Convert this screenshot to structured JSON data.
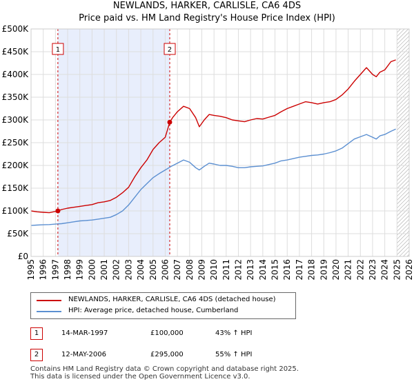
{
  "chart_data": {
    "type": "line",
    "title": "NEWLANDS, HARKER, CARLISLE, CA6 4DS",
    "subtitle": "Price paid vs. HM Land Registry's House Price Index (HPI)",
    "xlim": [
      1995,
      2026
    ],
    "ylim": [
      0,
      500000
    ],
    "x_ticks": [
      "1995",
      "1996",
      "1997",
      "1998",
      "1999",
      "2000",
      "2001",
      "2002",
      "2003",
      "2004",
      "2005",
      "2006",
      "2007",
      "2008",
      "2009",
      "2010",
      "2011",
      "2012",
      "2013",
      "2014",
      "2015",
      "2016",
      "2017",
      "2018",
      "2019",
      "2020",
      "2021",
      "2022",
      "2023",
      "2024",
      "2025",
      "2026"
    ],
    "y_ticks": [
      "£0",
      "£50K",
      "£100K",
      "£150K",
      "£200K",
      "£250K",
      "£300K",
      "£350K",
      "£400K",
      "£450K",
      "£500K"
    ],
    "grid": true,
    "shaded_region": [
      1997.2,
      2006.37
    ],
    "future_hatch_from": 2025.0,
    "series": [
      {
        "name": "NEWLANDS, HARKER, CARLISLE, CA6 4DS (detached house)",
        "color": "#cc0000",
        "x": [
          1995.0,
          1995.5,
          1996.0,
          1996.5,
          1997.2,
          1997.5,
          1998.0,
          1998.5,
          1999.0,
          1999.5,
          2000.0,
          2000.5,
          2001.0,
          2001.5,
          2002.0,
          2002.5,
          2003.0,
          2003.5,
          2004.0,
          2004.5,
          2005.0,
          2005.5,
          2006.0,
          2006.37,
          2006.6,
          2007.0,
          2007.5,
          2008.0,
          2008.5,
          2008.8,
          2009.2,
          2009.6,
          2010.0,
          2010.5,
          2011.0,
          2011.5,
          2012.0,
          2012.5,
          2013.0,
          2013.5,
          2014.0,
          2014.5,
          2015.0,
          2015.5,
          2016.0,
          2016.5,
          2017.0,
          2017.5,
          2018.0,
          2018.5,
          2019.0,
          2019.5,
          2020.0,
          2020.5,
          2021.0,
          2021.5,
          2022.0,
          2022.5,
          2023.0,
          2023.3,
          2023.6,
          2024.0,
          2024.5,
          2024.9
        ],
        "y": [
          100000,
          98000,
          97000,
          96000,
          100000,
          103000,
          106000,
          108000,
          110000,
          112000,
          114000,
          118000,
          120000,
          123000,
          130000,
          140000,
          152000,
          175000,
          195000,
          212000,
          235000,
          250000,
          262000,
          295000,
          305000,
          318000,
          330000,
          325000,
          305000,
          285000,
          300000,
          312000,
          310000,
          308000,
          305000,
          300000,
          298000,
          296000,
          300000,
          303000,
          302000,
          306000,
          310000,
          318000,
          325000,
          330000,
          335000,
          340000,
          338000,
          335000,
          338000,
          340000,
          345000,
          355000,
          368000,
          385000,
          400000,
          415000,
          400000,
          395000,
          405000,
          410000,
          428000,
          432000
        ]
      },
      {
        "name": "HPI: Average price, detached house, Cumberland",
        "color": "#5b8fd1",
        "x": [
          1995.0,
          1995.5,
          1996.0,
          1996.5,
          1997.0,
          1997.5,
          1998.0,
          1998.5,
          1999.0,
          1999.5,
          2000.0,
          2000.5,
          2001.0,
          2001.5,
          2002.0,
          2002.5,
          2003.0,
          2003.5,
          2004.0,
          2004.5,
          2005.0,
          2005.5,
          2006.0,
          2006.5,
          2007.0,
          2007.5,
          2008.0,
          2008.5,
          2008.8,
          2009.2,
          2009.6,
          2010.0,
          2010.5,
          2011.0,
          2011.5,
          2012.0,
          2012.5,
          2013.0,
          2013.5,
          2014.0,
          2014.5,
          2015.0,
          2015.5,
          2016.0,
          2016.5,
          2017.0,
          2017.5,
          2018.0,
          2018.5,
          2019.0,
          2019.5,
          2020.0,
          2020.5,
          2021.0,
          2021.5,
          2022.0,
          2022.5,
          2023.0,
          2023.3,
          2023.6,
          2024.0,
          2024.5,
          2024.9
        ],
        "y": [
          68000,
          69000,
          69500,
          70000,
          71000,
          72000,
          74000,
          76000,
          78000,
          79000,
          80000,
          82000,
          84000,
          86000,
          92000,
          100000,
          113000,
          130000,
          147000,
          160000,
          173000,
          182000,
          190000,
          198000,
          205000,
          212000,
          207000,
          195000,
          190000,
          198000,
          205000,
          203000,
          200000,
          200000,
          198000,
          195000,
          195000,
          197000,
          198000,
          199000,
          202000,
          205000,
          210000,
          212000,
          215000,
          218000,
          220000,
          222000,
          223000,
          225000,
          228000,
          232000,
          238000,
          248000,
          258000,
          263000,
          268000,
          262000,
          258000,
          265000,
          268000,
          275000,
          280000
        ]
      }
    ],
    "sales": [
      {
        "x": 1997.2,
        "y": 100000,
        "label": "1"
      },
      {
        "x": 2006.37,
        "y": 295000,
        "label": "2"
      }
    ]
  },
  "legend": {
    "red_label": "NEWLANDS, HARKER, CARLISLE, CA6 4DS (detached house)",
    "blue_label": "HPI: Average price, detached house, Cumberland"
  },
  "transactions": [
    {
      "num": "1",
      "date": "14-MAR-1997",
      "price": "£100,000",
      "hpi": "43% ↑ HPI"
    },
    {
      "num": "2",
      "date": "12-MAY-2006",
      "price": "£295,000",
      "hpi": "55% ↑ HPI"
    }
  ],
  "footer": {
    "line1": "Contains HM Land Registry data © Crown copyright and database right 2025.",
    "line2": "This data is licensed under the Open Government Licence v3.0."
  },
  "colors": {
    "red": "#cc0000",
    "blue": "#5b8fd1",
    "shade": "#e8eefc",
    "grid": "#dddddd"
  }
}
